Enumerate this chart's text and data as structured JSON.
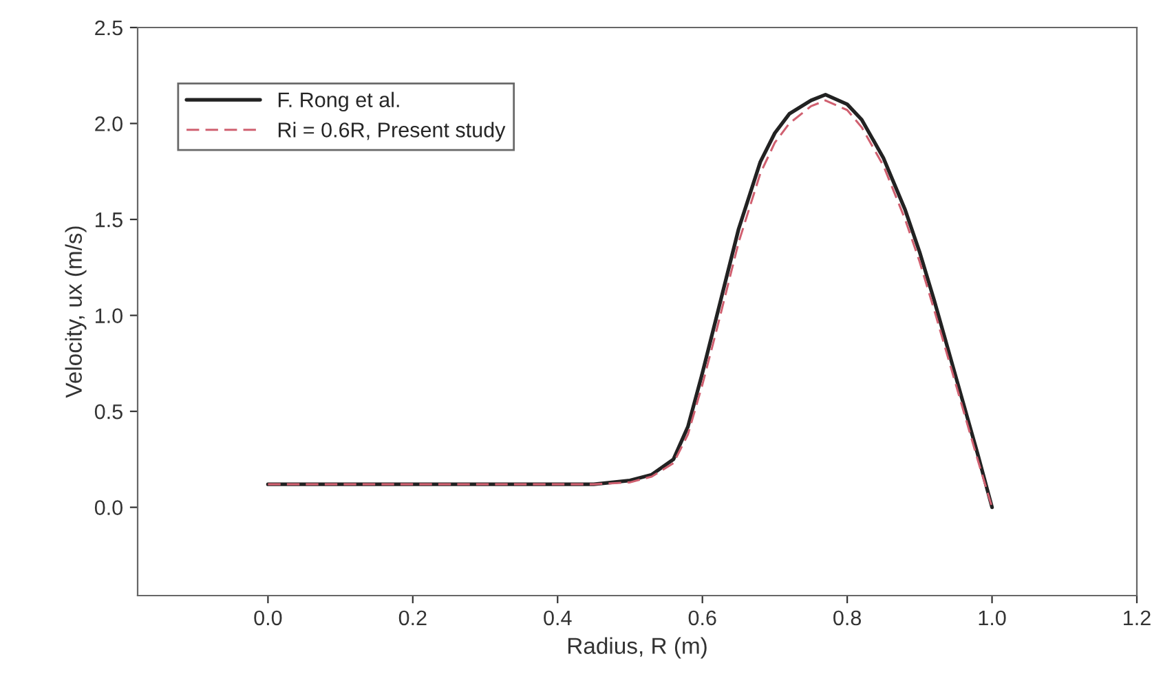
{
  "chart_data": {
    "type": "line",
    "xlabel": "Radius, R (m)",
    "ylabel": "Velocity, ux (m/s)",
    "xlim": [
      -0.18,
      1.2
    ],
    "xticks": [
      {
        "value": 0,
        "label": "0.0"
      },
      0.2,
      0.4,
      0.6,
      0.8,
      {
        "value": 1,
        "label": "1.0"
      },
      1.2
    ],
    "ylim": [
      -0.46,
      2.5
    ],
    "yticks": [
      {
        "value": 0,
        "label": "0.0"
      },
      0.5,
      {
        "value": 1,
        "label": "1.0"
      },
      1.5,
      {
        "value": 2,
        "label": "2.0"
      },
      2.5
    ],
    "grid": false,
    "legend": "top left",
    "series": [
      {
        "name": "F. Rong et al.",
        "color": "#222222",
        "line_style": "solid",
        "x": [
          0,
          0.1,
          0.2,
          0.3,
          0.4,
          0.45,
          0.5,
          0.53,
          0.56,
          0.58,
          0.6,
          0.62,
          0.65,
          0.68,
          0.7,
          0.72,
          0.75,
          0.77,
          0.8,
          0.82,
          0.85,
          0.88,
          0.9,
          0.92,
          0.95,
          0.98,
          1.0
        ],
        "values": [
          0.12,
          0.12,
          0.12,
          0.12,
          0.12,
          0.12,
          0.14,
          0.17,
          0.25,
          0.42,
          0.7,
          1.0,
          1.45,
          1.8,
          1.95,
          2.05,
          2.12,
          2.15,
          2.1,
          2.02,
          1.82,
          1.55,
          1.33,
          1.08,
          0.68,
          0.28,
          0.0
        ]
      },
      {
        "name": "Ri = 0.6R, Present study",
        "color": "#d06070",
        "line_style": "dashed",
        "x": [
          0,
          0.1,
          0.2,
          0.3,
          0.4,
          0.45,
          0.5,
          0.53,
          0.56,
          0.58,
          0.6,
          0.62,
          0.65,
          0.68,
          0.7,
          0.72,
          0.75,
          0.77,
          0.8,
          0.82,
          0.85,
          0.88,
          0.9,
          0.92,
          0.95,
          0.98,
          1.0
        ],
        "values": [
          0.12,
          0.12,
          0.12,
          0.12,
          0.12,
          0.12,
          0.13,
          0.16,
          0.23,
          0.38,
          0.64,
          0.93,
          1.38,
          1.74,
          1.9,
          2.0,
          2.09,
          2.12,
          2.07,
          1.98,
          1.78,
          1.5,
          1.28,
          1.03,
          0.64,
          0.25,
          0.0
        ]
      }
    ]
  }
}
